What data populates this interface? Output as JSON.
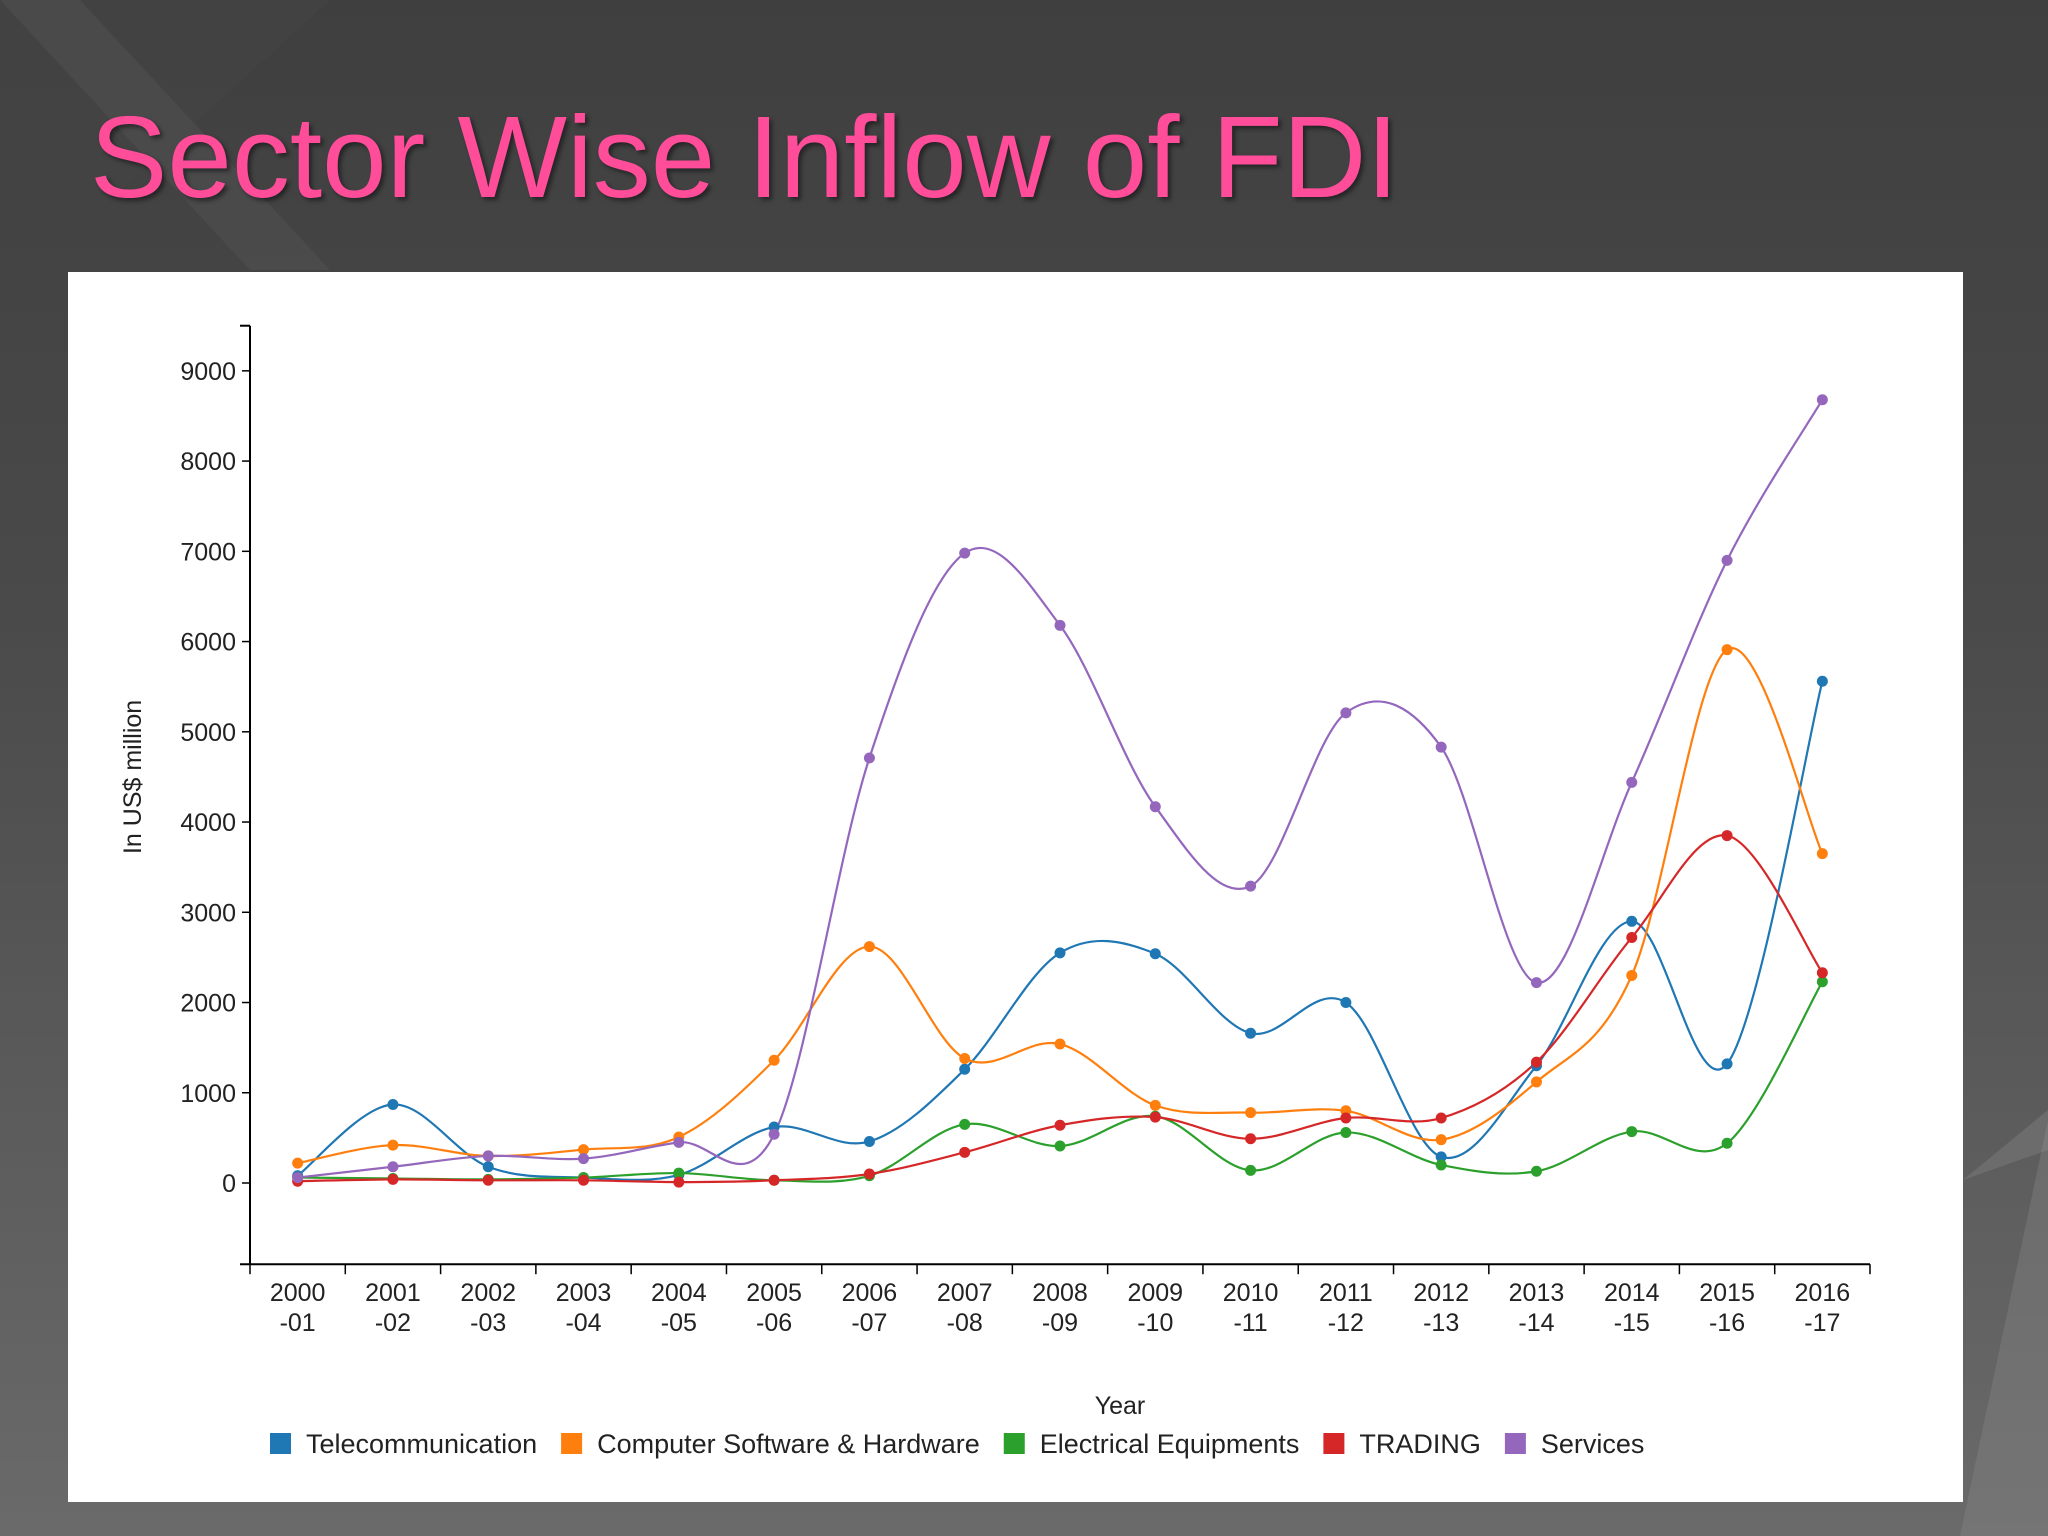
{
  "slide": {
    "title": "Sector Wise Inflow of FDI"
  },
  "chart_data": {
    "type": "line",
    "title": "",
    "xlabel": "Year",
    "ylabel": "In US$ million",
    "ylim": [
      -900,
      9500
    ],
    "yticks": [
      0,
      1000,
      2000,
      3000,
      4000,
      5000,
      6000,
      7000,
      8000,
      9000
    ],
    "categories": [
      [
        "2000",
        "-01"
      ],
      [
        "2001",
        "-02"
      ],
      [
        "2002",
        "-03"
      ],
      [
        "2003",
        "-04"
      ],
      [
        "2004",
        "-05"
      ],
      [
        "2005",
        "-06"
      ],
      [
        "2006",
        "-07"
      ],
      [
        "2007",
        "-08"
      ],
      [
        "2008",
        "-09"
      ],
      [
        "2009",
        "-10"
      ],
      [
        "2010",
        "-11"
      ],
      [
        "2011",
        "-12"
      ],
      [
        "2012",
        "-13"
      ],
      [
        "2013",
        "-14"
      ],
      [
        "2014",
        "-15"
      ],
      [
        "2015",
        "-16"
      ],
      [
        "2016",
        "-17"
      ]
    ],
    "legend_position": "bottom",
    "grid": false,
    "series": [
      {
        "name": "Telecommunication",
        "color": "#1f77b4",
        "values": [
          80,
          870,
          180,
          60,
          90,
          620,
          460,
          1260,
          2550,
          2540,
          1660,
          2000,
          290,
          1300,
          2900,
          1320,
          5560
        ]
      },
      {
        "name": "Computer Software & Hardware",
        "color": "#ff7f0e",
        "values": [
          220,
          420,
          300,
          370,
          510,
          1360,
          2620,
          1380,
          1540,
          860,
          780,
          800,
          480,
          1120,
          2300,
          5910,
          3650
        ]
      },
      {
        "name": "Electrical Equipments",
        "color": "#2ca02c",
        "values": [
          60,
          50,
          40,
          60,
          110,
          30,
          80,
          650,
          410,
          740,
          140,
          560,
          200,
          130,
          570,
          440,
          2230
        ]
      },
      {
        "name": "TRADING",
        "color": "#d62728",
        "values": [
          20,
          40,
          30,
          30,
          10,
          30,
          100,
          340,
          640,
          730,
          490,
          720,
          720,
          1340,
          2720,
          3850,
          2330
        ]
      },
      {
        "name": "Services",
        "color": "#9467bd",
        "values": [
          60,
          180,
          300,
          270,
          450,
          540,
          4710,
          6980,
          6180,
          4170,
          3290,
          5210,
          4830,
          2220,
          4440,
          6900,
          8680
        ]
      }
    ]
  }
}
